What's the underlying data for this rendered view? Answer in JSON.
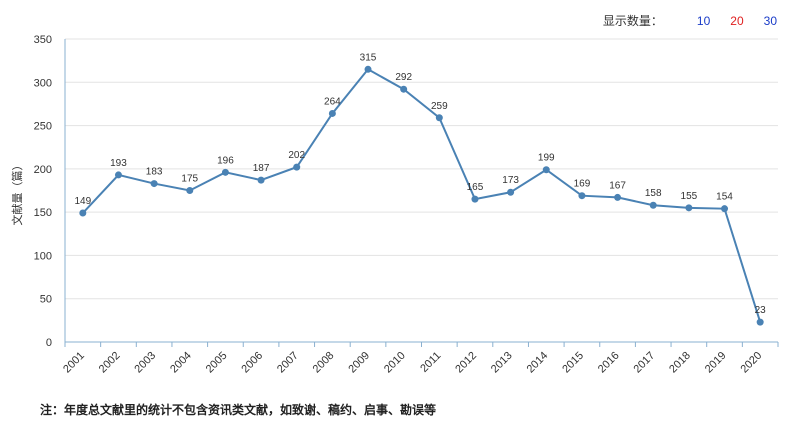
{
  "controls": {
    "label": "显示数量：",
    "options": [
      "10",
      "20",
      "30"
    ],
    "colors": [
      "#1a3cc8",
      "#e02020",
      "#1a3cc8"
    ]
  },
  "note": "注：年度总文献里的统计不包含资讯类文献，如致谢、稿约、启事、勘误等",
  "chart_data": {
    "type": "line",
    "title": "",
    "xlabel": "",
    "ylabel": "文献量（篇）",
    "ylim": [
      0,
      350
    ],
    "yticks": [
      0,
      50,
      100,
      150,
      200,
      250,
      300,
      350
    ],
    "grid": true,
    "legend": "none",
    "line_color": "#4a82b4",
    "categories": [
      "2001",
      "2002",
      "2003",
      "2004",
      "2005",
      "2006",
      "2007",
      "2008",
      "2009",
      "2010",
      "2011",
      "2012",
      "2013",
      "2014",
      "2015",
      "2016",
      "2017",
      "2018",
      "2019",
      "2020"
    ],
    "values": [
      149,
      193,
      183,
      175,
      196,
      187,
      202,
      264,
      315,
      292,
      259,
      165,
      173,
      199,
      169,
      167,
      158,
      155,
      154,
      23
    ]
  }
}
